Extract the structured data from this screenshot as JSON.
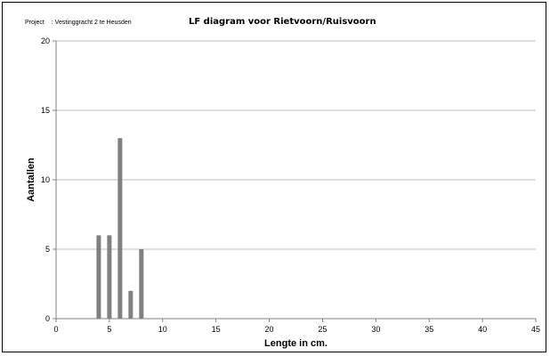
{
  "header": {
    "project_label": "Project",
    "project_value": ": Vestinggracht 2 te Heusden"
  },
  "chart_data": {
    "type": "bar",
    "title": "LF diagram voor Rietvoorn/Ruisvoorn",
    "xlabel": "Lengte in cm.",
    "ylabel": "Aantallen",
    "xlim": [
      0,
      45
    ],
    "ylim": [
      0,
      20
    ],
    "x_ticks": [
      0,
      5,
      10,
      15,
      20,
      25,
      30,
      35,
      40,
      45
    ],
    "y_ticks": [
      0,
      5,
      10,
      15,
      20
    ],
    "grid": "horizontal",
    "bar_color": "#808080",
    "grid_color": "#bfbfbf",
    "x": [
      4,
      5,
      6,
      7,
      8
    ],
    "values": [
      6,
      6,
      13,
      2,
      5
    ]
  }
}
